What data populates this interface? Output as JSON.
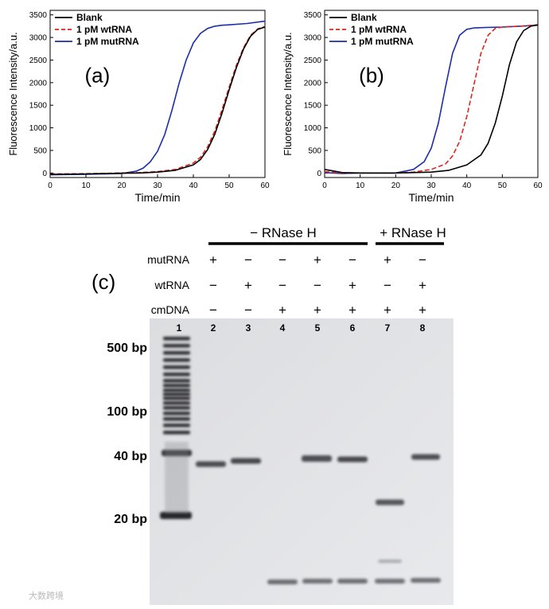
{
  "chart_data": [
    {
      "panel_label": "(a)",
      "type": "line",
      "xlabel": "Time/min",
      "ylabel": "Fluorescence Intensity/a.u.",
      "xlim": [
        0,
        60
      ],
      "ylim": [
        -100,
        3600
      ],
      "xticks": [
        0,
        10,
        20,
        30,
        40,
        50,
        60
      ],
      "yticks": [
        0,
        500,
        1000,
        1500,
        2000,
        2500,
        3000,
        3500
      ],
      "legend_position": "top-left",
      "series": [
        {
          "name": "Blank",
          "color": "#000000",
          "dash": "solid",
          "x": [
            0,
            10,
            20,
            25,
            30,
            35,
            40,
            42,
            44,
            46,
            48,
            50,
            52,
            54,
            56,
            58,
            60
          ],
          "y": [
            -30,
            -20,
            -5,
            0,
            20,
            60,
            180,
            300,
            520,
            860,
            1320,
            1840,
            2330,
            2740,
            3030,
            3180,
            3230
          ]
        },
        {
          "name": "1 pM wtRNA",
          "color": "#e0251c",
          "dash": "dashed",
          "x": [
            0,
            10,
            20,
            25,
            30,
            35,
            40,
            42,
            44,
            46,
            48,
            50,
            52,
            54,
            56,
            58,
            60
          ],
          "y": [
            -20,
            -15,
            0,
            10,
            30,
            80,
            220,
            350,
            580,
            930,
            1400,
            1900,
            2380,
            2770,
            3050,
            3190,
            3240
          ]
        },
        {
          "name": "1 pM mutRNA",
          "color": "#1c2ea8",
          "dash": "solid",
          "x": [
            0,
            10,
            20,
            24,
            26,
            28,
            30,
            32,
            34,
            36,
            38,
            40,
            42,
            44,
            46,
            48,
            50,
            55,
            60
          ],
          "y": [
            -40,
            -30,
            -10,
            40,
            110,
            250,
            480,
            850,
            1380,
            1980,
            2500,
            2880,
            3090,
            3200,
            3250,
            3270,
            3280,
            3310,
            3360
          ]
        }
      ]
    },
    {
      "panel_label": "(b)",
      "type": "line",
      "xlabel": "Time/min",
      "ylabel": "Fluorescence Intensity/a.u.",
      "xlim": [
        0,
        60
      ],
      "ylim": [
        -100,
        3600
      ],
      "xticks": [
        0,
        10,
        20,
        30,
        40,
        50,
        60
      ],
      "yticks": [
        0,
        500,
        1000,
        1500,
        2000,
        2500,
        3000,
        3500
      ],
      "legend_position": "top-left",
      "series": [
        {
          "name": "Blank",
          "color": "#000000",
          "dash": "solid",
          "x": [
            0,
            5,
            10,
            20,
            30,
            35,
            40,
            44,
            46,
            48,
            50,
            52,
            54,
            56,
            58,
            60
          ],
          "y": [
            80,
            10,
            0,
            0,
            20,
            60,
            180,
            400,
            660,
            1100,
            1700,
            2400,
            2900,
            3150,
            3250,
            3280
          ]
        },
        {
          "name": "1 pM wtRNA",
          "color": "#e0251c",
          "dash": "dashed",
          "x": [
            0,
            5,
            10,
            20,
            25,
            30,
            34,
            36,
            38,
            40,
            42,
            44,
            46,
            48,
            50,
            52,
            55,
            60
          ],
          "y": [
            30,
            0,
            0,
            0,
            20,
            80,
            200,
            380,
            700,
            1250,
            1950,
            2650,
            3050,
            3200,
            3230,
            3240,
            3250,
            3280
          ]
        },
        {
          "name": "1 pM mutRNA",
          "color": "#1c2ea8",
          "dash": "solid",
          "x": [
            0,
            5,
            10,
            20,
            25,
            28,
            30,
            32,
            34,
            36,
            38,
            40,
            42,
            45,
            50,
            55,
            60
          ],
          "y": [
            10,
            -10,
            0,
            0,
            80,
            250,
            550,
            1100,
            1900,
            2650,
            3050,
            3180,
            3210,
            3220,
            3230,
            3250,
            3270
          ]
        }
      ]
    },
    {
      "panel_label": "(c)",
      "type": "gel",
      "condition_headers": [
        "− RNase H",
        "+ RNase H"
      ],
      "row_labels": [
        "mutRNA",
        "wtRNA",
        "cmDNA"
      ],
      "lanes": [
        {
          "number": "1",
          "signs": [
            "",
            "",
            ""
          ]
        },
        {
          "number": "2",
          "signs": [
            "+",
            "−",
            "−"
          ]
        },
        {
          "number": "3",
          "signs": [
            "−",
            "+",
            "−"
          ]
        },
        {
          "number": "4",
          "signs": [
            "−",
            "−",
            "+"
          ]
        },
        {
          "number": "5",
          "signs": [
            "+",
            "−",
            "+"
          ]
        },
        {
          "number": "6",
          "signs": [
            "−",
            "+",
            "+"
          ]
        },
        {
          "number": "7",
          "signs": [
            "+",
            "−",
            "+"
          ]
        },
        {
          "number": "8",
          "signs": [
            "−",
            "+",
            "+"
          ]
        }
      ],
      "size_markers": [
        "500 bp",
        "100 bp",
        "40 bp",
        "20 bp"
      ]
    }
  ],
  "watermark": "大数跨境"
}
